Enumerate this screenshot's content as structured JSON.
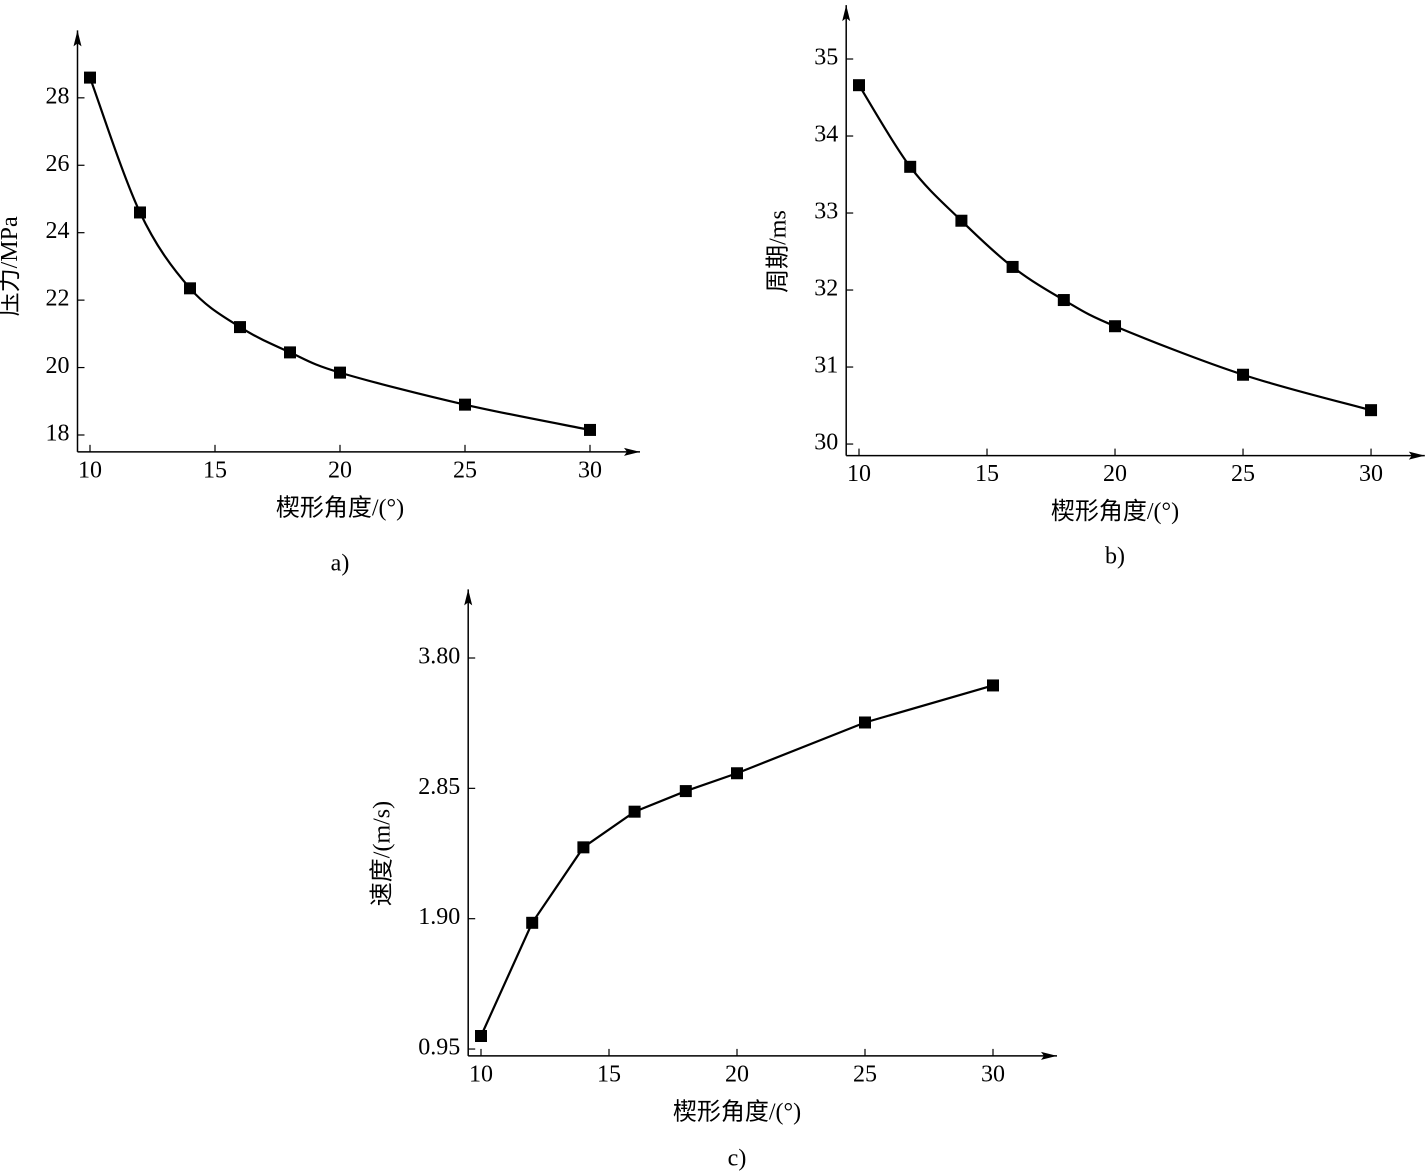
{
  "chart_data": [
    {
      "type": "line",
      "caption": "a)",
      "x_label": "楔形角度/(°)",
      "y_label": "压力/MPa",
      "color": "#000000",
      "smooth": true,
      "x": [
        10,
        12,
        14,
        16,
        18,
        20,
        25,
        30
      ],
      "values": [
        28.6,
        24.6,
        22.35,
        21.2,
        20.45,
        19.85,
        18.9,
        18.15
      ],
      "xlim": [
        9.5,
        32
      ],
      "ylim": [
        17.5,
        30
      ],
      "xticks": [
        10,
        15,
        20,
        25,
        30
      ],
      "yticks": [
        18,
        20,
        22,
        24,
        26,
        28
      ]
    },
    {
      "type": "line",
      "caption": "b)",
      "x_label": "楔形角度/(°)",
      "y_label": "周期/ms",
      "color": "#000000",
      "smooth": true,
      "x": [
        10,
        12,
        14,
        16,
        18,
        20,
        25,
        30
      ],
      "values": [
        34.66,
        33.6,
        32.9,
        32.3,
        31.87,
        31.53,
        30.9,
        30.44
      ],
      "xlim": [
        9.5,
        32.1
      ],
      "ylim": [
        29.85,
        35.7
      ],
      "xticks": [
        10,
        15,
        20,
        25,
        30
      ],
      "yticks": [
        30,
        31,
        32,
        33,
        34,
        35
      ]
    },
    {
      "type": "line",
      "caption": "c)",
      "x_label": "楔形角度/(°)",
      "y_label": "速度/(m/s)",
      "color": "#000000",
      "smooth": false,
      "x": [
        10,
        12,
        14,
        16,
        18,
        20,
        25,
        30
      ],
      "values": [
        1.045,
        1.87,
        2.42,
        2.68,
        2.83,
        2.96,
        3.33,
        3.6
      ],
      "xlim": [
        9.5,
        32.5
      ],
      "ylim": [
        0.9,
        4.3
      ],
      "xticks": [
        10,
        15,
        20,
        25,
        30
      ],
      "yticks": [
        {
          "value": 0.95,
          "label": "0.95"
        },
        {
          "value": 1.9,
          "label": "1.90"
        },
        {
          "value": 2.85,
          "label": "2.85"
        },
        {
          "value": 3.8,
          "label": "3.80"
        }
      ]
    }
  ]
}
